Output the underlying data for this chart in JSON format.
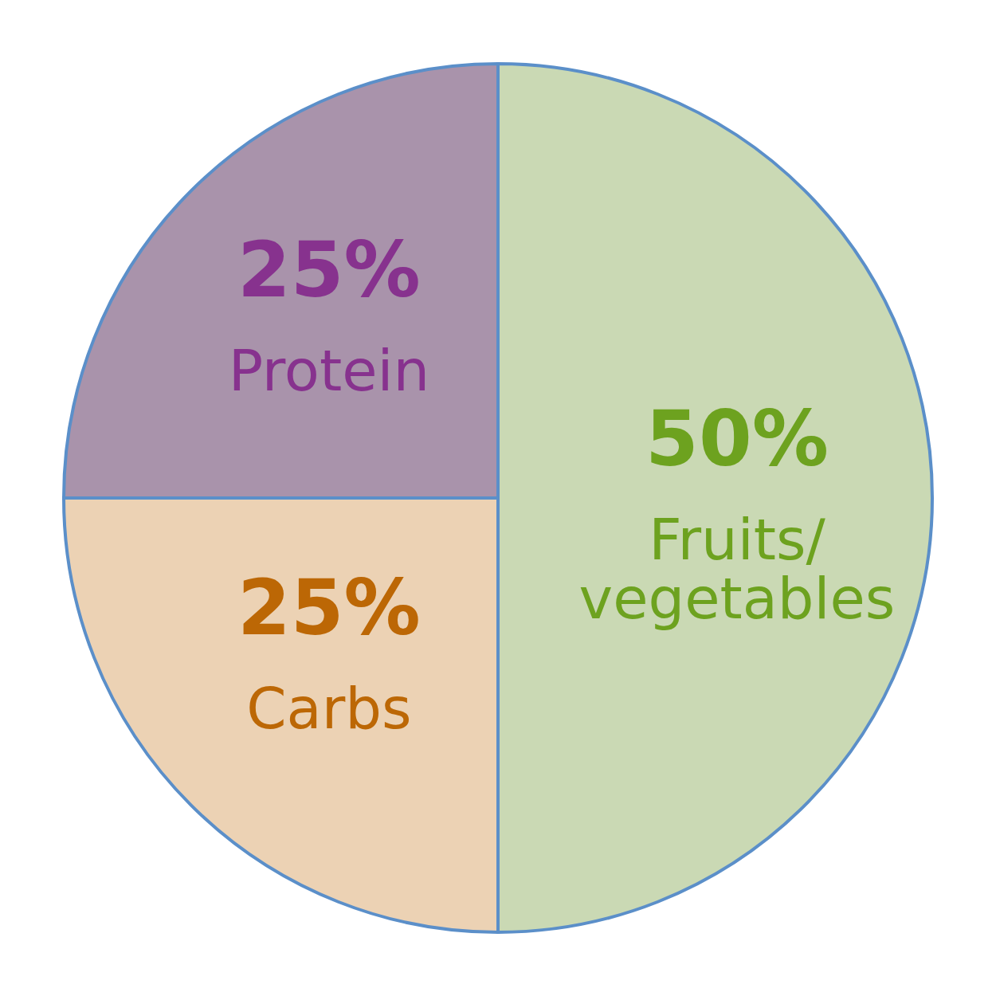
{
  "chart_data": {
    "type": "pie",
    "categories": [
      "Fruits/vegetables",
      "Carbs",
      "Protein"
    ],
    "values": [
      50,
      25,
      25
    ],
    "value_labels": [
      "50%",
      "25%",
      "25%"
    ],
    "colors": [
      "#cad9b4",
      "#ecd2b4",
      "#a993ab"
    ],
    "legend": false
  }
}
